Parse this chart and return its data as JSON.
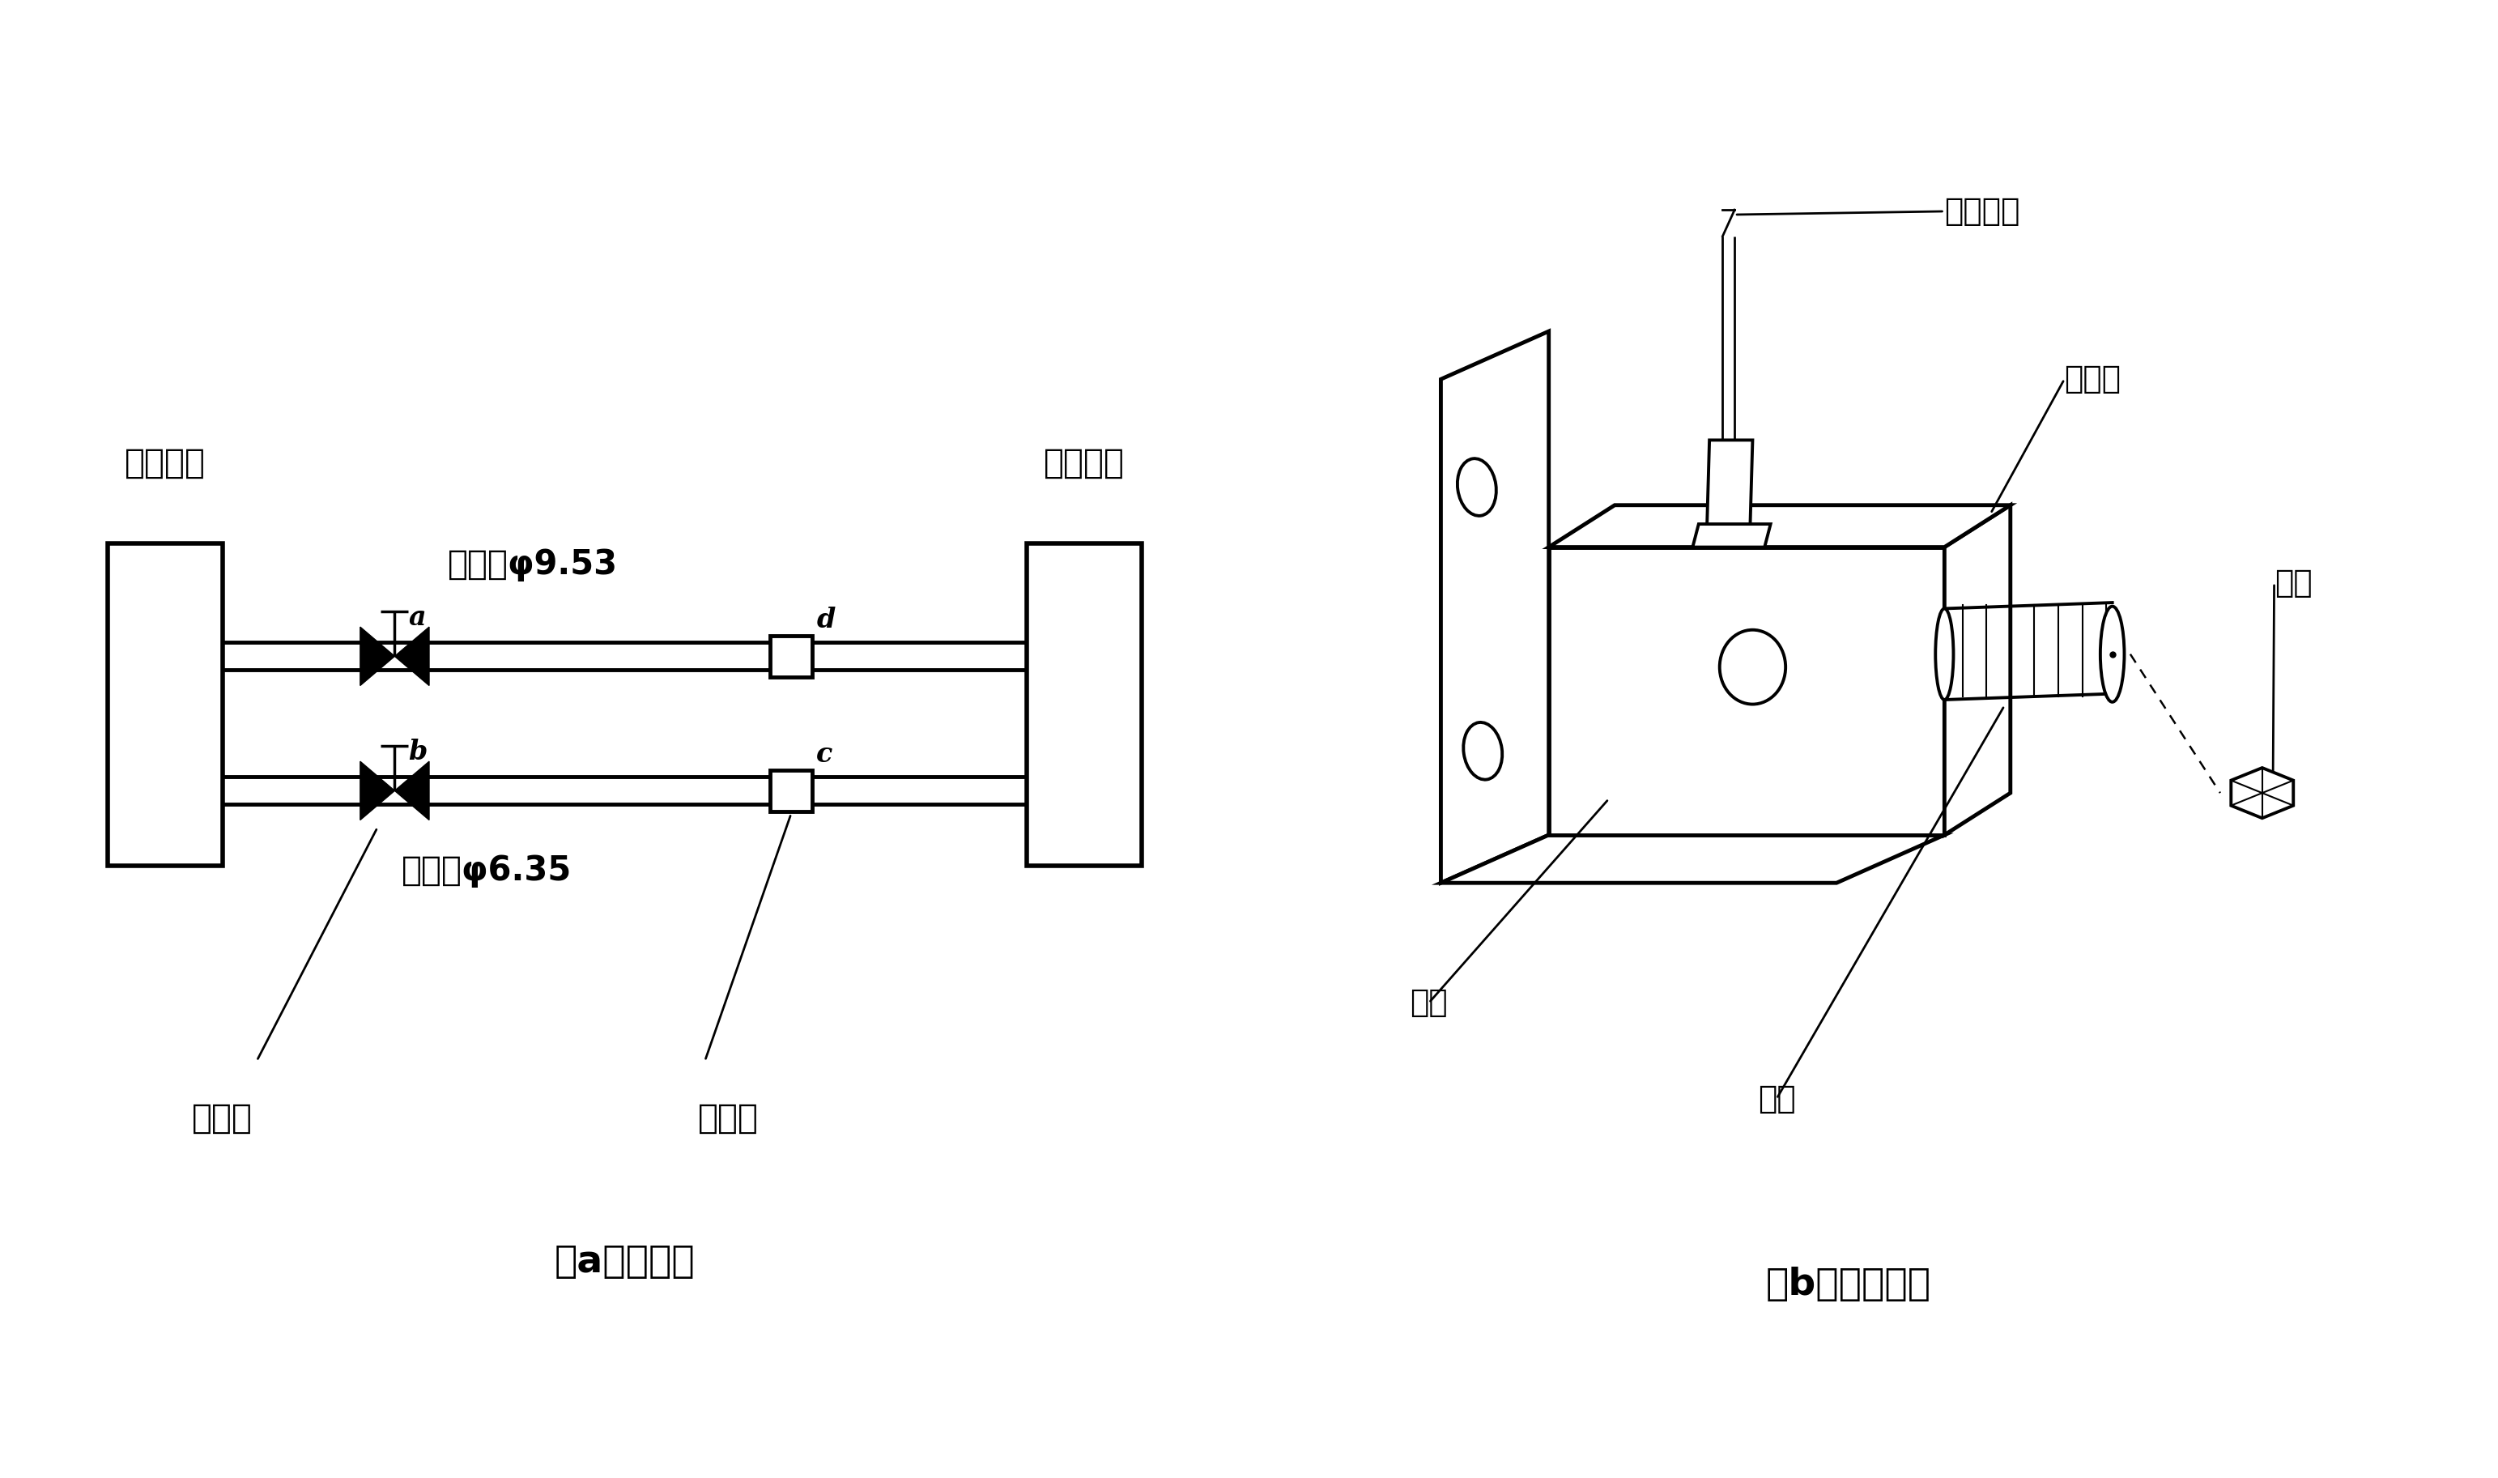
{
  "bg_color": "#ffffff",
  "line_color": "#000000",
  "fig_width": 30.85,
  "fig_height": 18.25,
  "panel_a": {
    "title": "（a）接管图",
    "label_outdoor": "室外机组",
    "label_indoor": "室内机组",
    "label_gas": "气体侧φ9.53",
    "label_liquid": "液体侧φ6.35",
    "label_valve": "截止阀",
    "label_connector": "管接头",
    "label_a": "a",
    "label_b": "b",
    "label_c": "c",
    "label_d": "d"
  },
  "panel_b": {
    "title": "（b）接口详图",
    "label_nut": "接管螺母",
    "label_limit": "限位块",
    "label_cap": "阀帽",
    "label_body": "阀体",
    "label_stem": "阀杆"
  }
}
